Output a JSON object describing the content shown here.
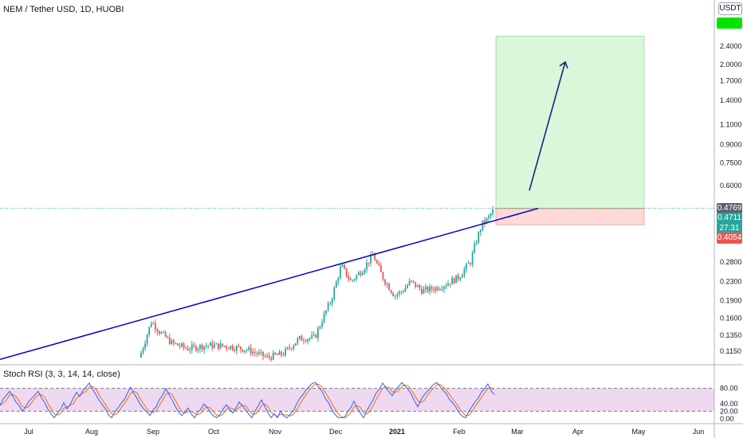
{
  "symbol": {
    "title": "NEM / Tether USD, 1D, HUOBI"
  },
  "currency": {
    "label": "USDT"
  },
  "price_scale": {
    "ticks": [
      "2.4000",
      "2.0000",
      "1.7000",
      "1.4000",
      "1.1000",
      "0.9000",
      "0.7500",
      "0.6000",
      "0.2800",
      "0.2300",
      "0.1900",
      "0.1600",
      "0.1350",
      "0.1150"
    ],
    "target_tag": "· · · ·",
    "current_tag": "0.4769",
    "last_tag": "0.4711",
    "countdown_tag": "27:31",
    "stop_tag": "0.4054",
    "target_color": "#00e600",
    "current_color": "#5d606b",
    "last_color": "#26a69a",
    "stop_color": "#ef5350"
  },
  "time_axis": {
    "labels": [
      "Jul",
      "Aug",
      "Sep",
      "Oct",
      "Nov",
      "Dec",
      "2021",
      "Feb",
      "Mar",
      "Apr",
      "May",
      "Jun"
    ]
  },
  "oscillator": {
    "title": "Stoch RSI (3, 3, 14, 14, close)",
    "ticks": [
      "80.00",
      "40.00",
      "20.00",
      "0.00"
    ],
    "k_color": "#2962ff",
    "d_color": "#ff6d00",
    "band_color": "#e1bee7"
  },
  "chart_data": {
    "type": "candlestick",
    "scale": "log",
    "colors": {
      "up": "#26a69a",
      "down": "#ef5350",
      "trendline": "#0000cc",
      "arrow": "#1a237e"
    },
    "long_position": {
      "entry": 0.4769,
      "stop": 0.4054,
      "target": 2.65
    },
    "trendline": {
      "from": [
        "Jun",
        0.106
      ],
      "to": [
        "Mar",
        0.4769
      ]
    },
    "arrow": {
      "from": [
        "Mar",
        0.57
      ],
      "to": [
        "Apr",
        2.05
      ]
    },
    "price_path": [
      {
        "x": 175,
        "p": 0.108
      },
      {
        "x": 190,
        "p": 0.155
      },
      {
        "x": 200,
        "p": 0.14
      },
      {
        "x": 215,
        "p": 0.125
      },
      {
        "x": 235,
        "p": 0.118
      },
      {
        "x": 260,
        "p": 0.122
      },
      {
        "x": 285,
        "p": 0.121
      },
      {
        "x": 310,
        "p": 0.117
      },
      {
        "x": 335,
        "p": 0.108
      },
      {
        "x": 355,
        "p": 0.112
      },
      {
        "x": 375,
        "p": 0.13
      },
      {
        "x": 395,
        "p": 0.132
      },
      {
        "x": 405,
        "p": 0.16
      },
      {
        "x": 415,
        "p": 0.19
      },
      {
        "x": 428,
        "p": 0.27
      },
      {
        "x": 440,
        "p": 0.23
      },
      {
        "x": 455,
        "p": 0.26
      },
      {
        "x": 468,
        "p": 0.3
      },
      {
        "x": 480,
        "p": 0.24
      },
      {
        "x": 495,
        "p": 0.2
      },
      {
        "x": 505,
        "p": 0.21
      },
      {
        "x": 515,
        "p": 0.23
      },
      {
        "x": 530,
        "p": 0.21
      },
      {
        "x": 545,
        "p": 0.215
      },
      {
        "x": 560,
        "p": 0.225
      },
      {
        "x": 575,
        "p": 0.24
      },
      {
        "x": 590,
        "p": 0.28
      },
      {
        "x": 598,
        "p": 0.35
      },
      {
        "x": 605,
        "p": 0.41
      },
      {
        "x": 612,
        "p": 0.43
      },
      {
        "x": 620,
        "p": 0.475
      }
    ]
  }
}
